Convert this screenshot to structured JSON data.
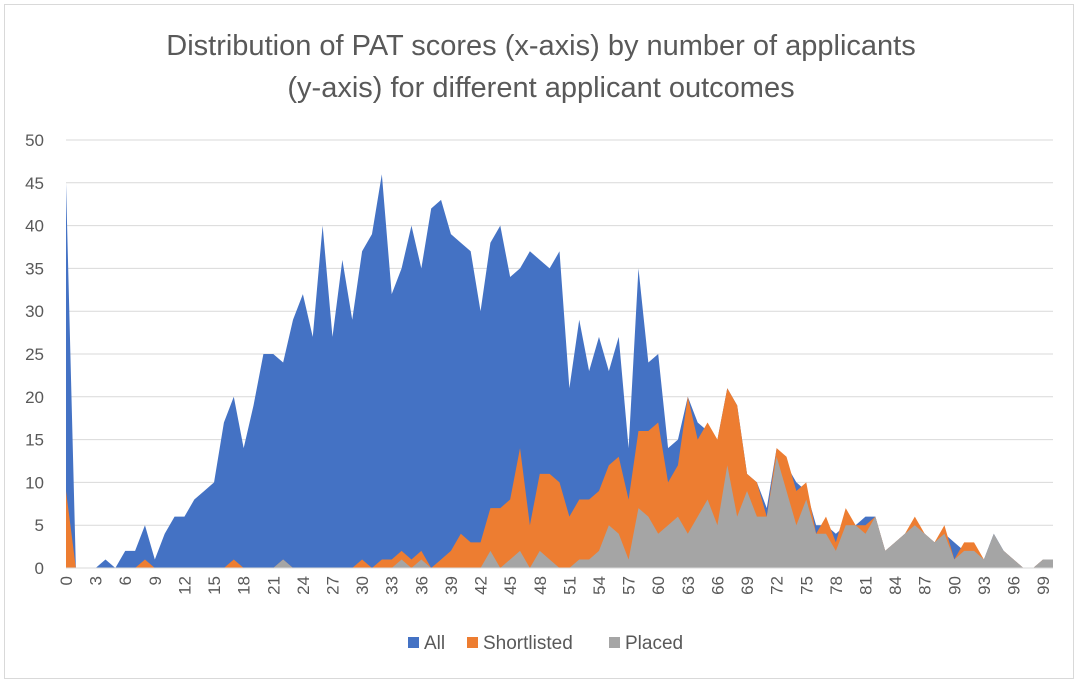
{
  "chart_data": {
    "type": "area",
    "title_lines": [
      "Distribution of PAT scores (x-axis) by number of applicants",
      "(y-axis) for different applicant outcomes"
    ],
    "xlabel": "",
    "ylabel": "",
    "ylim": [
      0,
      50
    ],
    "yticks": [
      0,
      5,
      10,
      15,
      20,
      25,
      30,
      35,
      40,
      45,
      50
    ],
    "xlim": [
      0,
      100
    ],
    "xtick_labels": [
      0,
      3,
      6,
      9,
      12,
      15,
      18,
      21,
      24,
      27,
      30,
      33,
      36,
      39,
      42,
      45,
      48,
      51,
      54,
      57,
      60,
      63,
      66,
      69,
      72,
      75,
      78,
      81,
      84,
      87,
      90,
      93,
      96,
      99
    ],
    "grid": true,
    "legend_position": "bottom",
    "x": [
      0,
      1,
      2,
      3,
      4,
      5,
      6,
      7,
      8,
      9,
      10,
      11,
      12,
      13,
      14,
      15,
      16,
      17,
      18,
      19,
      20,
      21,
      22,
      23,
      24,
      25,
      26,
      27,
      28,
      29,
      30,
      31,
      32,
      33,
      34,
      35,
      36,
      37,
      38,
      39,
      40,
      41,
      42,
      43,
      44,
      45,
      46,
      47,
      48,
      49,
      50,
      51,
      52,
      53,
      54,
      55,
      56,
      57,
      58,
      59,
      60,
      61,
      62,
      63,
      64,
      65,
      66,
      67,
      68,
      69,
      70,
      71,
      72,
      73,
      74,
      75,
      76,
      77,
      78,
      79,
      80,
      81,
      82,
      83,
      84,
      85,
      86,
      87,
      88,
      89,
      90,
      91,
      92,
      93,
      94,
      95,
      96,
      97,
      98,
      99,
      100
    ],
    "series": [
      {
        "name": "All",
        "color": "#4472c4",
        "values": [
          45,
          0,
          0,
          0,
          1,
          0,
          2,
          2,
          5,
          1,
          4,
          6,
          6,
          8,
          9,
          10,
          17,
          20,
          14,
          19,
          25,
          25,
          24,
          29,
          32,
          27,
          40,
          27,
          36,
          29,
          37,
          39,
          46,
          32,
          35,
          40,
          35,
          42,
          43,
          39,
          38,
          37,
          30,
          38,
          40,
          34,
          35,
          37,
          36,
          35,
          37,
          21,
          29,
          23,
          27,
          23,
          27,
          14,
          35,
          24,
          25,
          14,
          15,
          20,
          17,
          16,
          15,
          21,
          19,
          11,
          10,
          7,
          14,
          12,
          10,
          9,
          5,
          5,
          4,
          5,
          5,
          6,
          6,
          2,
          3,
          4,
          5,
          4,
          3,
          4,
          3,
          2,
          2,
          1,
          4,
          2,
          1,
          0,
          0,
          1,
          1
        ]
      },
      {
        "name": "Shortlisted",
        "color": "#ed7d31",
        "values": [
          9,
          0,
          0,
          0,
          0,
          0,
          0,
          0,
          1,
          0,
          0,
          0,
          0,
          0,
          0,
          0,
          0,
          1,
          0,
          0,
          0,
          0,
          1,
          0,
          0,
          0,
          0,
          0,
          0,
          0,
          1,
          0,
          1,
          1,
          2,
          1,
          2,
          0,
          1,
          2,
          4,
          3,
          3,
          7,
          7,
          8,
          14,
          5,
          11,
          11,
          10,
          6,
          8,
          8,
          9,
          12,
          13,
          8,
          16,
          16,
          17,
          10,
          12,
          20,
          15,
          17,
          15,
          21,
          19,
          11,
          10,
          6,
          14,
          13,
          9,
          10,
          4,
          6,
          3,
          7,
          5,
          5,
          6,
          2,
          3,
          4,
          6,
          4,
          3,
          5,
          1,
          3,
          3,
          1,
          3,
          2,
          1,
          0,
          0,
          1,
          1
        ]
      },
      {
        "name": "Placed",
        "color": "#a5a5a5",
        "values": [
          0,
          0,
          0,
          0,
          0,
          0,
          0,
          0,
          0,
          0,
          0,
          0,
          0,
          0,
          0,
          0,
          0,
          0,
          0,
          0,
          0,
          0,
          1,
          0,
          0,
          0,
          0,
          0,
          0,
          0,
          0,
          0,
          0,
          0,
          1,
          0,
          1,
          0,
          0,
          0,
          0,
          0,
          0,
          2,
          0,
          1,
          2,
          0,
          2,
          1,
          0,
          0,
          1,
          1,
          2,
          5,
          4,
          1,
          7,
          6,
          4,
          5,
          6,
          4,
          6,
          8,
          5,
          12,
          6,
          9,
          6,
          6,
          13,
          9,
          5,
          8,
          4,
          4,
          2,
          5,
          5,
          4,
          6,
          2,
          3,
          4,
          5,
          4,
          3,
          4,
          1,
          2,
          2,
          1,
          4,
          2,
          1,
          0,
          0,
          1,
          1
        ]
      }
    ]
  }
}
